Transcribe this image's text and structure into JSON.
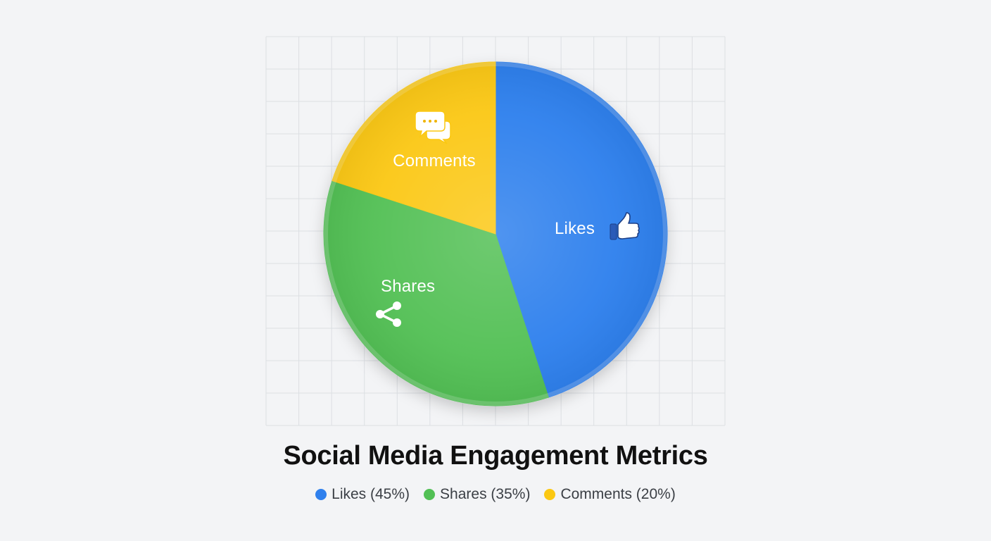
{
  "chart_data": {
    "type": "pie",
    "title": "Social Media Engagement Metrics",
    "slices": [
      {
        "label": "Likes",
        "value": 45,
        "color": "#2f80ed",
        "icon": "thumbs-up-icon"
      },
      {
        "label": "Shares",
        "value": 35,
        "color": "#52c055",
        "icon": "share-icon"
      },
      {
        "label": "Comments",
        "value": 20,
        "color": "#fbc812",
        "icon": "comments-icon"
      }
    ],
    "legend": {
      "placement": "bottom",
      "items": [
        {
          "text": "Likes (45%)",
          "color": "#2f80ed"
        },
        {
          "text": "Shares (35%)",
          "color": "#52c055"
        },
        {
          "text": "Comments (20%)",
          "color": "#fbc812"
        }
      ]
    },
    "grid": true
  }
}
